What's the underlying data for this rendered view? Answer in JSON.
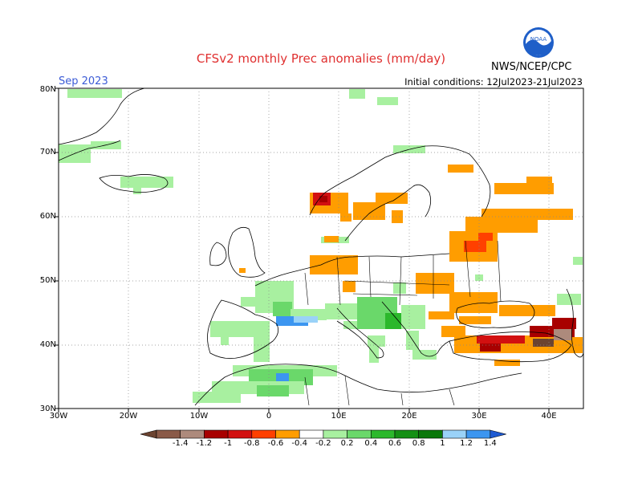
{
  "header": {
    "title": "CFSv2 monthly Prec anomalies (mm/day)",
    "month": "Sep 2023",
    "initial_conditions": "Initial conditions: 12Jul2023-21Jul2023",
    "agency": "NWS/NCEP/CPC",
    "logo_text": "NOAA"
  },
  "map": {
    "lat_labels": [
      "80N",
      "70N",
      "60N",
      "50N",
      "40N",
      "30N"
    ],
    "lon_labels": [
      "30W",
      "20W",
      "10W",
      "0",
      "10E",
      "20E",
      "30E",
      "40E"
    ],
    "lat_values": [
      80,
      70,
      60,
      50,
      40,
      30
    ],
    "lon_values": [
      -30,
      -20,
      -10,
      0,
      10,
      20,
      30,
      40
    ],
    "lon_range": [
      -30,
      45
    ],
    "lat_range": [
      30,
      80
    ],
    "gridlines": true
  },
  "colorbar": {
    "labels": [
      "-1.4",
      "-1.2",
      "-1",
      "-0.8",
      "-0.6",
      "-0.4",
      "-0.2",
      "0.2",
      "0.4",
      "0.6",
      "0.8",
      "1",
      "1.2",
      "1.4"
    ],
    "colors": [
      "#6b4330",
      "#8a5a48",
      "#ad8a7c",
      "#a80000",
      "#d21010",
      "#ff4000",
      "#ff9d00",
      "#ffffff",
      "#a8f0a0",
      "#6ad86a",
      "#2cb82c",
      "#149014",
      "#0a780a",
      "#9ad2f8",
      "#3c96f0",
      "#1e5ad2"
    ]
  }
}
